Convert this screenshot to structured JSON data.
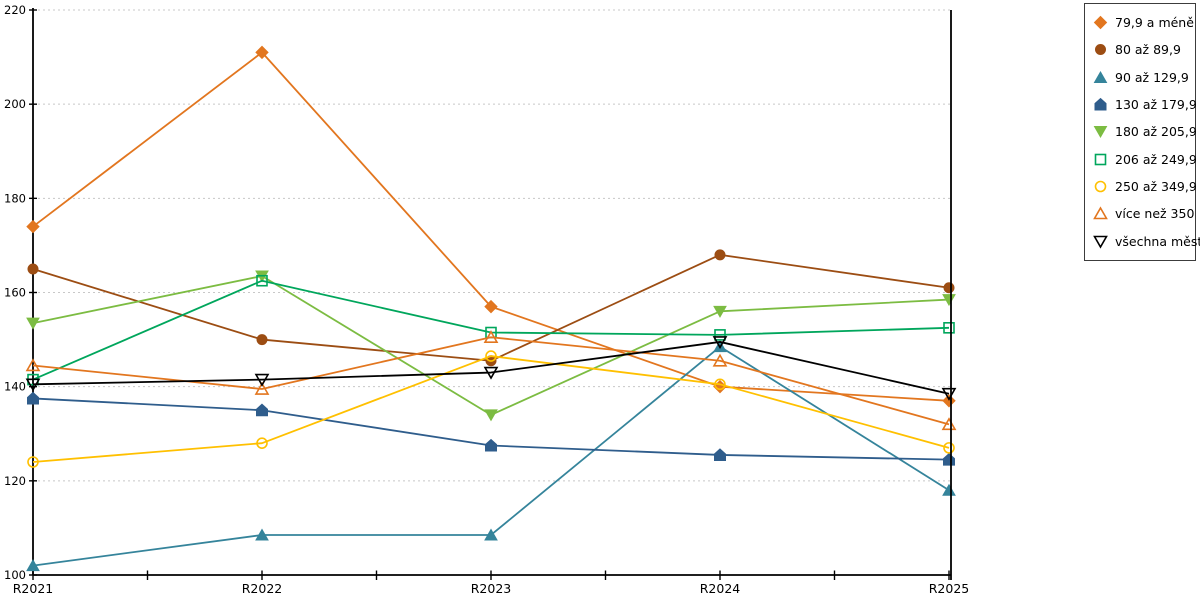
{
  "chart_data": {
    "type": "line",
    "title": "",
    "xlabel": "",
    "ylabel": "",
    "categories": [
      "R2021",
      "R2022",
      "R2023",
      "R2024",
      "R2025"
    ],
    "series": [
      {
        "name": "79,9 a méně",
        "marker": "diamond",
        "style": "filled",
        "color": "#E2761F",
        "values": [
          174,
          211,
          157,
          140,
          137
        ]
      },
      {
        "name": "80 až 89,9",
        "marker": "circle",
        "style": "filled",
        "color": "#9C4D13",
        "values": [
          165,
          150,
          145.5,
          168,
          161
        ]
      },
      {
        "name": "90 až 129,9",
        "marker": "triangle-up",
        "style": "filled",
        "color": "#35849B",
        "values": [
          102,
          108.5,
          108.5,
          148.5,
          118
        ]
      },
      {
        "name": "130 až 179,9",
        "marker": "pentagon",
        "style": "filled",
        "color": "#2F5D8C",
        "values": [
          137.5,
          135,
          127.5,
          125.5,
          124.5
        ]
      },
      {
        "name": "180 až 205,9",
        "marker": "triangle-down",
        "style": "filled",
        "color": "#7CBC42",
        "values": [
          153.5,
          163.5,
          134,
          156,
          158.5
        ]
      },
      {
        "name": "206 až 249,9",
        "marker": "square",
        "style": "outline",
        "color": "#00A65C",
        "values": [
          141.5,
          162.5,
          151.5,
          151,
          152.5
        ]
      },
      {
        "name": "250 až 349,9",
        "marker": "circle",
        "style": "outline",
        "color": "#FFC000",
        "values": [
          124,
          128,
          146.5,
          140.5,
          127
        ]
      },
      {
        "name": "více než 350",
        "marker": "triangle-up",
        "style": "outline",
        "color": "#E2761F",
        "values": [
          144.5,
          139.5,
          150.5,
          145.5,
          132
        ]
      },
      {
        "name": "všechna města",
        "marker": "triangle-down",
        "style": "outline",
        "color": "#000000",
        "values": [
          140.5,
          141.5,
          143,
          149.5,
          138.5
        ]
      }
    ],
    "ylim": [
      100,
      220
    ],
    "yticks": [
      "100",
      "120",
      "140",
      "160",
      "180",
      "200",
      "220"
    ],
    "grid": "horizontal dotted",
    "legend_position": "top-right",
    "axis_color": "#000000",
    "gridline_color": "#C8C8C8",
    "background_color": "#FFFFFF"
  }
}
